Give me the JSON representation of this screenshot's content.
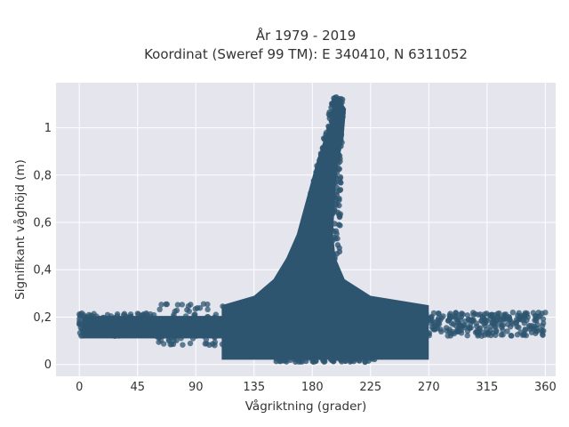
{
  "chart_data": {
    "type": "scatter",
    "title": "År 1979 - 2019",
    "subtitle": "Koordinat (Sweref 99 TM): E 340410, N 6311052",
    "xlabel": "Vågriktning (grader)",
    "ylabel": "Signifikant våghöjd (m)",
    "xlim": [
      -18,
      368
    ],
    "ylim": [
      -0.05,
      1.19
    ],
    "x_ticks": [
      0,
      45,
      90,
      135,
      180,
      225,
      270,
      315,
      360
    ],
    "x_tick_labels": [
      "0",
      "45",
      "90",
      "135",
      "180",
      "225",
      "270",
      "315",
      "360"
    ],
    "y_ticks": [
      0,
      0.2,
      0.4,
      0.6,
      0.8,
      1
    ],
    "y_tick_labels": [
      "0",
      "0,2",
      "0,4",
      "0,6",
      "0,8",
      "1"
    ],
    "grid": true,
    "marker_color": "#2e5570",
    "background_color": "#e5e5ee",
    "series": [
      {
        "values_envelope": {
          "x_range": [
            0,
            360
          ],
          "low_band_y_range": [
            0.04,
            0.23
          ],
          "ridge": [
            {
              "x": 110,
              "y": 0.25
            },
            {
              "x": 135,
              "y": 0.29
            },
            {
              "x": 150,
              "y": 0.36
            },
            {
              "x": 160,
              "y": 0.45
            },
            {
              "x": 168,
              "y": 0.55
            },
            {
              "x": 173,
              "y": 0.65
            },
            {
              "x": 178,
              "y": 0.75
            },
            {
              "x": 183,
              "y": 0.85
            },
            {
              "x": 189,
              "y": 0.95
            },
            {
              "x": 196,
              "y": 1.05
            },
            {
              "x": 200,
              "y": 1.13
            },
            {
              "x": 206,
              "y": 1.08
            },
            {
              "x": 204,
              "y": 0.95
            },
            {
              "x": 200,
              "y": 0.85
            },
            {
              "x": 198,
              "y": 0.75
            },
            {
              "x": 197,
              "y": 0.65
            },
            {
              "x": 196,
              "y": 0.55
            },
            {
              "x": 198,
              "y": 0.45
            },
            {
              "x": 205,
              "y": 0.36
            },
            {
              "x": 225,
              "y": 0.29
            },
            {
              "x": 270,
              "y": 0.25
            }
          ]
        }
      }
    ]
  }
}
